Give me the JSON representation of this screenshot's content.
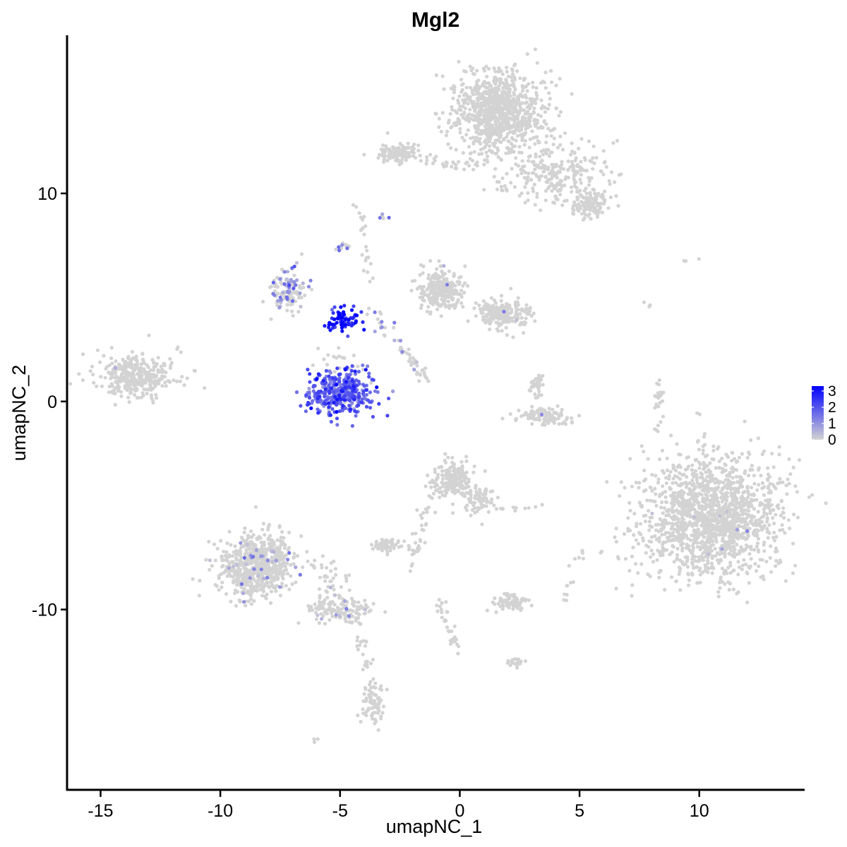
{
  "chart_data": {
    "type": "scatter",
    "title": "Mgl2",
    "xlabel": "umapNC_1",
    "ylabel": "umapNC_2",
    "xlim": [
      -16.4,
      14.4
    ],
    "ylim": [
      -18.7,
      17.6
    ],
    "xticks": [
      -15,
      -10,
      -5,
      0,
      5,
      10
    ],
    "xtick_labels": [
      "-15",
      "-10",
      "-5",
      "0",
      "5",
      "10"
    ],
    "yticks": [
      -10,
      0,
      10
    ],
    "ytick_labels": [
      "-10",
      "0",
      "10"
    ],
    "grid": false,
    "legend": {
      "position": "right",
      "title": "",
      "breaks": [
        0,
        1,
        2,
        3
      ],
      "labels": [
        "0",
        "1",
        "2",
        "3"
      ],
      "colors": {
        "low": "#d3d3d3",
        "high": "#0000ff"
      },
      "range": [
        0,
        3.3
      ]
    },
    "clusters": [
      {
        "cx": 1.6,
        "cy": 13.9,
        "sx": 1.2,
        "sy": 1.2,
        "n": 900,
        "expr_mean": 0.0,
        "expr_frac": 0.0
      },
      {
        "cx": 3.9,
        "cy": 11.0,
        "sx": 1.5,
        "sy": 0.9,
        "n": 260,
        "expr_mean": 0.0,
        "expr_frac": 0.0
      },
      {
        "cx": 5.4,
        "cy": 9.5,
        "sx": 0.55,
        "sy": 0.4,
        "n": 110,
        "expr_mean": 0.0,
        "expr_frac": 0.0
      },
      {
        "cx": -2.6,
        "cy": 11.9,
        "sx": 0.6,
        "sy": 0.35,
        "n": 110,
        "expr_mean": 0.0,
        "expr_frac": 0.0
      },
      {
        "cx": 10.5,
        "cy": -5.5,
        "sx": 1.8,
        "sy": 1.8,
        "n": 1600,
        "expr_mean": 0.3,
        "expr_frac": 0.004
      },
      {
        "cx": -13.5,
        "cy": 1.2,
        "sx": 1.0,
        "sy": 0.65,
        "n": 320,
        "expr_mean": 0.6,
        "expr_frac": 0.01
      },
      {
        "cx": -5.0,
        "cy": 0.4,
        "sx": 0.9,
        "sy": 0.65,
        "n": 380,
        "expr_mean": 1.8,
        "expr_frac": 0.98
      },
      {
        "cx": -4.8,
        "cy": 3.9,
        "sx": 0.35,
        "sy": 0.35,
        "n": 75,
        "expr_mean": 2.9,
        "expr_frac": 1.0
      },
      {
        "cx": -7.2,
        "cy": 5.3,
        "sx": 0.45,
        "sy": 0.65,
        "n": 120,
        "expr_mean": 1.0,
        "expr_frac": 0.35
      },
      {
        "cx": -0.8,
        "cy": 5.4,
        "sx": 0.55,
        "sy": 0.6,
        "n": 260,
        "expr_mean": 0.7,
        "expr_frac": 0.01
      },
      {
        "cx": 1.8,
        "cy": 4.2,
        "sx": 0.75,
        "sy": 0.45,
        "n": 200,
        "expr_mean": 0.6,
        "expr_frac": 0.01
      },
      {
        "cx": -8.5,
        "cy": -7.9,
        "sx": 0.95,
        "sy": 0.95,
        "n": 650,
        "expr_mean": 0.8,
        "expr_frac": 0.05
      },
      {
        "cx": -5.0,
        "cy": -10.0,
        "sx": 0.9,
        "sy": 0.35,
        "n": 110,
        "expr_mean": 0.7,
        "expr_frac": 0.03
      },
      {
        "cx": -0.2,
        "cy": -3.8,
        "sx": 0.55,
        "sy": 0.55,
        "n": 200,
        "expr_mean": 0.0,
        "expr_frac": 0.0
      },
      {
        "cx": 0.9,
        "cy": -4.8,
        "sx": 0.45,
        "sy": 0.4,
        "n": 70,
        "expr_mean": 0.0,
        "expr_frac": 0.0
      },
      {
        "cx": 3.5,
        "cy": -0.7,
        "sx": 0.75,
        "sy": 0.25,
        "n": 110,
        "expr_mean": 0.6,
        "expr_frac": 0.02
      },
      {
        "cx": 3.2,
        "cy": 0.8,
        "sx": 0.2,
        "sy": 0.35,
        "n": 35,
        "expr_mean": 0.0,
        "expr_frac": 0.0
      },
      {
        "cx": -3.1,
        "cy": -6.9,
        "sx": 0.35,
        "sy": 0.2,
        "n": 60,
        "expr_mean": 0.0,
        "expr_frac": 0.0
      },
      {
        "cx": 2.2,
        "cy": -9.6,
        "sx": 0.5,
        "sy": 0.22,
        "n": 70,
        "expr_mean": 0.0,
        "expr_frac": 0.0
      },
      {
        "cx": 2.3,
        "cy": -12.5,
        "sx": 0.25,
        "sy": 0.15,
        "n": 20,
        "expr_mean": 0.0,
        "expr_frac": 0.0
      },
      {
        "cx": -3.6,
        "cy": -14.6,
        "sx": 0.3,
        "sy": 0.6,
        "n": 55,
        "expr_mean": 0.0,
        "expr_frac": 0.0
      },
      {
        "cx": 8.3,
        "cy": -0.2,
        "sx": 0.12,
        "sy": 0.8,
        "n": 25,
        "expr_mean": 0.0,
        "expr_frac": 0.0
      }
    ],
    "trails": [
      {
        "from": [
          -6.0,
          -7.5
        ],
        "to": [
          -4.2,
          -10.4
        ],
        "n": 60,
        "spread": 0.3,
        "expr_mean": 0.8,
        "expr_frac": 0.08
      },
      {
        "from": [
          -4.2,
          -10.6
        ],
        "to": [
          -3.6,
          -15.2
        ],
        "n": 45,
        "spread": 0.18,
        "expr_mean": 0.0,
        "expr_frac": 0.0
      },
      {
        "from": [
          -1.0,
          -3.8
        ],
        "to": [
          -2.2,
          -8.3
        ],
        "n": 45,
        "spread": 0.15,
        "expr_mean": 0.0,
        "expr_frac": 0.0
      },
      {
        "from": [
          -0.9,
          -9.4
        ],
        "to": [
          -0.1,
          -12.0
        ],
        "n": 30,
        "spread": 0.12,
        "expr_mean": 0.0,
        "expr_frac": 0.0
      },
      {
        "from": [
          -1.4,
          1.2
        ],
        "to": [
          -3.8,
          4.4
        ],
        "n": 35,
        "spread": 0.22,
        "expr_mean": 0.9,
        "expr_frac": 0.2
      },
      {
        "from": [
          -2.5,
          2.7
        ],
        "to": [
          -1.4,
          1.0
        ],
        "n": 20,
        "spread": 0.12,
        "expr_mean": 0.0,
        "expr_frac": 0.0
      },
      {
        "from": [
          -4.2,
          9.5
        ],
        "to": [
          -3.8,
          5.5
        ],
        "n": 22,
        "spread": 0.12,
        "expr_mean": 0.0,
        "expr_frac": 0.0
      },
      {
        "from": [
          0.8,
          11.3
        ],
        "to": [
          -1.6,
          11.7
        ],
        "n": 30,
        "spread": 0.15,
        "expr_mean": 0.0,
        "expr_frac": 0.0
      },
      {
        "from": [
          1.3,
          11.6
        ],
        "to": [
          1.2,
          13.2
        ],
        "n": 22,
        "spread": 0.15,
        "expr_mean": 0.0,
        "expr_frac": 0.0
      },
      {
        "from": [
          -12.5,
          1.2
        ],
        "to": [
          -11.8,
          2.6
        ],
        "n": 10,
        "spread": 0.12,
        "expr_mean": 0.0,
        "expr_frac": 0.0
      },
      {
        "from": [
          4.3,
          -9.6
        ],
        "to": [
          5.1,
          -7.2
        ],
        "n": 12,
        "spread": 0.1,
        "expr_mean": 0.0,
        "expr_frac": 0.0
      },
      {
        "from": [
          -3.3,
          8.8
        ],
        "to": [
          -3.0,
          9.0
        ],
        "n": 6,
        "spread": 0.1,
        "expr_mean": 1.0,
        "expr_frac": 0.3
      },
      {
        "from": [
          -5.0,
          7.3
        ],
        "to": [
          -4.6,
          7.5
        ],
        "n": 12,
        "spread": 0.12,
        "expr_mean": 1.0,
        "expr_frac": 0.35
      },
      {
        "from": [
          -6.5,
          2.2
        ],
        "to": [
          -4.2,
          1.8
        ],
        "n": 18,
        "spread": 0.3,
        "expr_mean": 0.0,
        "expr_frac": 0.0
      },
      {
        "from": [
          1.5,
          -5.2
        ],
        "to": [
          3.4,
          -5.0
        ],
        "n": 12,
        "spread": 0.08,
        "expr_mean": 0.0,
        "expr_frac": 0.0
      },
      {
        "from": [
          7.7,
          4.8
        ],
        "to": [
          8.1,
          4.4
        ],
        "n": 3,
        "spread": 0.05,
        "expr_mean": 0.0,
        "expr_frac": 0.0
      },
      {
        "from": [
          9.4,
          6.7
        ],
        "to": [
          10.0,
          6.9
        ],
        "n": 3,
        "spread": 0.05,
        "expr_mean": 0.0,
        "expr_frac": 0.0
      },
      {
        "from": [
          5.1,
          -7.0
        ],
        "to": [
          5.2,
          -7.6
        ],
        "n": 4,
        "spread": 0.05,
        "expr_mean": 0.0,
        "expr_frac": 0.0
      },
      {
        "from": [
          -6.0,
          -16.2
        ],
        "to": [
          -6.1,
          -16.4
        ],
        "n": 3,
        "spread": 0.05,
        "expr_mean": 0.0,
        "expr_frac": 0.0
      },
      {
        "from": [
          -11.0,
          1.4
        ],
        "to": [
          -11.1,
          1.5
        ],
        "n": 2,
        "spread": 0.05,
        "expr_mean": 0.0,
        "expr_frac": 0.0
      }
    ]
  }
}
